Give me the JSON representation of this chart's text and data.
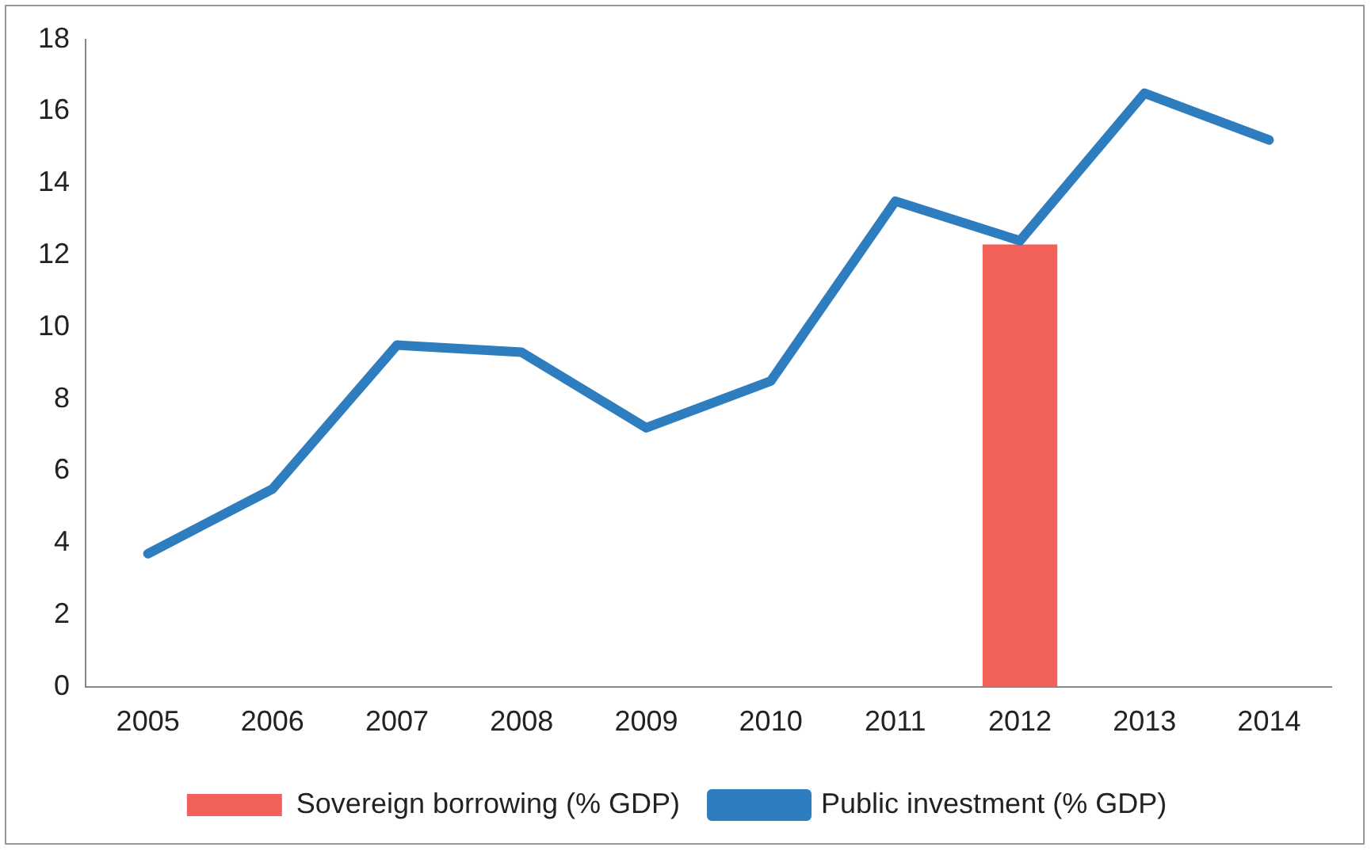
{
  "chart_data": {
    "type": "line",
    "categories": [
      "2005",
      "2006",
      "2007",
      "2008",
      "2009",
      "2010",
      "2011",
      "2012",
      "2013",
      "2014"
    ],
    "series": [
      {
        "name": "Sovereign borrowing (% GDP)",
        "type": "bar",
        "color": "#f2605a",
        "values": [
          null,
          null,
          null,
          null,
          null,
          null,
          null,
          12.3,
          null,
          null
        ]
      },
      {
        "name": "Public investment (% GDP)",
        "color": "#2e7dbf",
        "values": [
          3.7,
          5.5,
          9.5,
          9.3,
          7.2,
          8.5,
          13.5,
          12.4,
          16.5,
          15.2
        ]
      }
    ],
    "ylim": [
      0,
      18
    ],
    "yticks": [
      0,
      2,
      4,
      6,
      8,
      10,
      12,
      14,
      16,
      18
    ],
    "grid": false,
    "legend": "bottom",
    "marker": "none"
  }
}
